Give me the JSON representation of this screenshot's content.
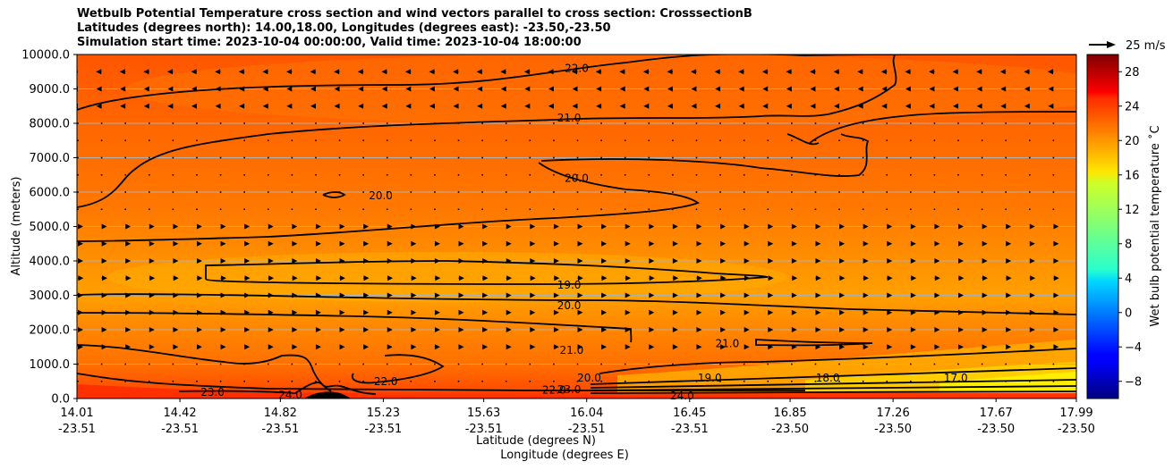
{
  "title_lines": [
    "Wetbulb Potential Temperature cross section and wind vectors parallel to cross section: CrosssectionB",
    "Latitudes (degrees north): 14.00,18.00, Longitudes (degrees east): -23.50,-23.50",
    "Simulation start time: 2023-10-04 00:00:00, Valid time: 2023-10-04 18:00:00"
  ],
  "chart_data": {
    "type": "heatmap",
    "subtype": "contour-cross-section-with-wind-vectors",
    "ylabel": "Altitude (meters)",
    "xlabel_lines": [
      "Latitude (degrees N)",
      "Longitude (degrees E)"
    ],
    "ylim": [
      0,
      10000
    ],
    "y_ticks": [
      "0.0",
      "1000.0",
      "2000.0",
      "3000.0",
      "4000.0",
      "5000.0",
      "6000.0",
      "7000.0",
      "8000.0",
      "9000.0",
      "10000.0"
    ],
    "y_tick_values": [
      0,
      1000,
      2000,
      3000,
      4000,
      5000,
      6000,
      7000,
      8000,
      9000,
      10000
    ],
    "x_tick_lat": [
      "14.01",
      "14.42",
      "14.82",
      "15.23",
      "15.63",
      "16.04",
      "16.45",
      "16.85",
      "17.26",
      "17.67",
      "17.99"
    ],
    "x_tick_lon": [
      "-23.51",
      "-23.51",
      "-23.51",
      "-23.51",
      "-23.51",
      "-23.51",
      "-23.51",
      "-23.50",
      "-23.50",
      "-23.50",
      "-23.50"
    ],
    "xlim": [
      14.01,
      17.99
    ],
    "grid": "horizontal",
    "colorbar": {
      "label": "Wet bulb potential temperature ˚C",
      "ticks": [
        "−8",
        "−4",
        "0",
        "4",
        "8",
        "12",
        "16",
        "20",
        "24",
        "28"
      ],
      "tick_values": [
        -8,
        -4,
        0,
        4,
        8,
        12,
        16,
        20,
        24,
        28
      ],
      "range": [
        -10,
        30
      ],
      "colormap": "jet"
    },
    "quiver_key": {
      "label": "25 m/s",
      "speed": 25
    },
    "contour_labels": [
      {
        "text": "22.0",
        "lat": 16.0,
        "alt": 9600
      },
      {
        "text": "21.0",
        "lat": 15.97,
        "alt": 8150
      },
      {
        "text": "20.0",
        "lat": 16.0,
        "alt": 6400
      },
      {
        "text": "20.0",
        "lat": 15.22,
        "alt": 5900
      },
      {
        "text": "19.0",
        "lat": 15.97,
        "alt": 3300
      },
      {
        "text": "20.0",
        "lat": 15.97,
        "alt": 2700
      },
      {
        "text": "21.0",
        "lat": 15.98,
        "alt": 1400
      },
      {
        "text": "21.0",
        "lat": 16.6,
        "alt": 1600
      },
      {
        "text": "20.0",
        "lat": 16.05,
        "alt": 600
      },
      {
        "text": "19.0",
        "lat": 16.53,
        "alt": 600
      },
      {
        "text": "18.0",
        "lat": 17.0,
        "alt": 600
      },
      {
        "text": "17.0",
        "lat": 17.51,
        "alt": 600
      },
      {
        "text": "22.0",
        "lat": 15.24,
        "alt": 500
      },
      {
        "text": "23.0",
        "lat": 14.55,
        "alt": 180
      },
      {
        "text": "24.0",
        "lat": 14.86,
        "alt": 100
      },
      {
        "text": "24.0",
        "lat": 16.42,
        "alt": 80
      },
      {
        "text": "22.0",
        "lat": 15.91,
        "alt": 250
      },
      {
        "text": "23.0",
        "lat": 15.97,
        "alt": 260
      }
    ],
    "wind_vector_levels": [
      {
        "alt": 9500,
        "u": -8
      },
      {
        "alt": 9000,
        "u": -5
      },
      {
        "alt": 8500,
        "u": -2
      },
      {
        "alt": 8000,
        "u": -1
      },
      {
        "alt": 7500,
        "u": -1
      },
      {
        "alt": 7000,
        "u": 0
      },
      {
        "alt": 6500,
        "u": 0
      },
      {
        "alt": 6000,
        "u": 0
      },
      {
        "alt": 5500,
        "u": 1
      },
      {
        "alt": 5000,
        "u": 3
      },
      {
        "alt": 4500,
        "u": 5
      },
      {
        "alt": 4000,
        "u": 6
      },
      {
        "alt": 3500,
        "u": 8
      },
      {
        "alt": 3000,
        "u": 6
      },
      {
        "alt": 2500,
        "u": 5
      },
      {
        "alt": 2000,
        "u": 4
      },
      {
        "alt": 1500,
        "u": 3
      },
      {
        "alt": 1000,
        "u": 1
      },
      {
        "alt": 500,
        "u": 0
      }
    ]
  }
}
